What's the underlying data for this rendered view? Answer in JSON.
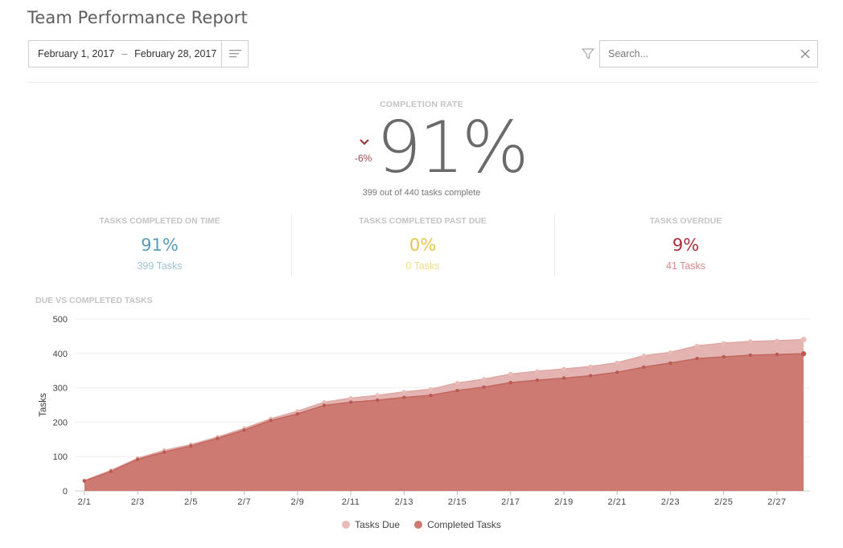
{
  "header": {
    "title": "Team Performance Report"
  },
  "date_range": {
    "from": "February 1, 2017",
    "separator": "–",
    "to": "February 28, 2017"
  },
  "search": {
    "placeholder": "Search...",
    "value": ""
  },
  "completion_rate": {
    "label": "COMPLETION RATE",
    "value": "91%",
    "change": "-6%",
    "subtitle": "399 out of 440 tasks complete"
  },
  "kpis": [
    {
      "label": "TASKS COMPLETED ON TIME",
      "percent": "91%",
      "count": "399 Tasks",
      "color": "#5a9bb8",
      "count_color": "#9fc4d6"
    },
    {
      "label": "TASKS COMPLETED PAST DUE",
      "percent": "0%",
      "count": "0 Tasks",
      "color": "#e8c54a",
      "count_color": "#f2dc8c"
    },
    {
      "label": "TASKS OVERDUE",
      "percent": "9%",
      "count": "41 Tasks",
      "color": "#a8323c",
      "count_color": "#d78a8a"
    }
  ],
  "chart_title": "DUE VS COMPLETED TASKS",
  "colors": {
    "due": "#e3b4b1",
    "completed": "#cd7b72",
    "completed_line": "#c2665e",
    "due_point": "#e8bcb9",
    "completed_point": "#b85a52"
  },
  "chart_data": {
    "type": "area",
    "title": "DUE VS COMPLETED TASKS",
    "xlabel": "",
    "ylabel": "Tasks",
    "ylim": [
      0,
      500
    ],
    "yticks": [
      0,
      100,
      200,
      300,
      400,
      500
    ],
    "x": [
      "2/1",
      "2/2",
      "2/3",
      "2/4",
      "2/5",
      "2/6",
      "2/7",
      "2/8",
      "2/9",
      "2/10",
      "2/11",
      "2/12",
      "2/13",
      "2/14",
      "2/15",
      "2/16",
      "2/17",
      "2/18",
      "2/19",
      "2/20",
      "2/21",
      "2/22",
      "2/23",
      "2/24",
      "2/25",
      "2/26",
      "2/27",
      "2/28"
    ],
    "xticks": [
      "2/1",
      "2/3",
      "2/5",
      "2/7",
      "2/9",
      "2/11",
      "2/13",
      "2/15",
      "2/17",
      "2/19",
      "2/21",
      "2/23",
      "2/25",
      "2/27"
    ],
    "series": [
      {
        "name": "Tasks Due",
        "values": [
          30,
          60,
          95,
          118,
          135,
          157,
          182,
          210,
          232,
          258,
          270,
          278,
          288,
          296,
          314,
          325,
          340,
          348,
          355,
          362,
          373,
          393,
          403,
          422,
          430,
          435,
          437,
          440
        ]
      },
      {
        "name": "Completed Tasks",
        "values": [
          29,
          57,
          92,
          113,
          131,
          153,
          177,
          205,
          224,
          249,
          258,
          264,
          272,
          278,
          292,
          302,
          315,
          322,
          328,
          335,
          345,
          360,
          372,
          385,
          390,
          395,
          397,
          399
        ]
      }
    ],
    "legend": "bottom-center",
    "grid": true
  }
}
